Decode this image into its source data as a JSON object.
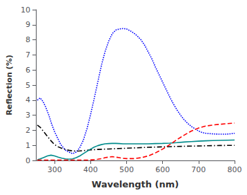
{
  "chart_data": {
    "type": "line",
    "xlabel": "Wavelength (nm)",
    "ylabel": "Reflection (%)",
    "xlim": [
      248,
      800
    ],
    "ylim": [
      0,
      10
    ],
    "xticks": [
      300,
      400,
      500,
      600,
      700,
      800
    ],
    "yticks": [
      0,
      1,
      2,
      3,
      4,
      5,
      6,
      7,
      8,
      9,
      10
    ],
    "grid": false,
    "series": [
      {
        "color": "#0000FF",
        "line_style": "dotted",
        "x": [
          252,
          260,
          268,
          276,
          284,
          292,
          300,
          308,
          316,
          324,
          332,
          340,
          350,
          360,
          370,
          380,
          390,
          400,
          410,
          420,
          430,
          440,
          450,
          460,
          470,
          480,
          490,
          500,
          510,
          520,
          530,
          540,
          550,
          560,
          570,
          580,
          590,
          600,
          610,
          620,
          630,
          640,
          650,
          660,
          670,
          680,
          690,
          700,
          710,
          720,
          730,
          740,
          750,
          760,
          770,
          780,
          790,
          800
        ],
        "values": [
          4.0,
          4.15,
          3.9,
          3.5,
          3.0,
          2.4,
          1.9,
          1.5,
          1.1,
          0.85,
          0.65,
          0.55,
          0.45,
          0.55,
          0.85,
          1.35,
          2.1,
          3.05,
          4.1,
          5.2,
          6.3,
          7.2,
          7.9,
          8.4,
          8.65,
          8.72,
          8.75,
          8.72,
          8.6,
          8.45,
          8.25,
          8.0,
          7.65,
          7.2,
          6.75,
          6.2,
          5.7,
          5.2,
          4.7,
          4.2,
          3.75,
          3.35,
          3.0,
          2.7,
          2.45,
          2.25,
          2.1,
          1.95,
          1.85,
          1.8,
          1.78,
          1.76,
          1.75,
          1.74,
          1.74,
          1.75,
          1.77,
          1.8
        ]
      },
      {
        "color": "#000000",
        "line_style": "dashdot",
        "x": [
          252,
          260,
          270,
          280,
          290,
          300,
          310,
          320,
          330,
          340,
          350,
          360,
          370,
          380,
          390,
          400,
          420,
          450,
          480,
          500,
          530,
          560,
          600,
          640,
          680,
          720,
          760,
          800
        ],
        "values": [
          2.35,
          2.2,
          1.9,
          1.6,
          1.3,
          1.05,
          0.9,
          0.8,
          0.72,
          0.67,
          0.63,
          0.62,
          0.63,
          0.65,
          0.67,
          0.7,
          0.73,
          0.76,
          0.79,
          0.81,
          0.84,
          0.87,
          0.9,
          0.93,
          0.95,
          0.97,
          0.99,
          1.0
        ]
      },
      {
        "color": "#008B8B",
        "line_style": "solid",
        "x": [
          252,
          260,
          270,
          280,
          290,
          300,
          310,
          320,
          330,
          340,
          350,
          360,
          370,
          380,
          390,
          400,
          410,
          420,
          430,
          440,
          450,
          460,
          470,
          480,
          490,
          500,
          520,
          540,
          560,
          580,
          600,
          620,
          640,
          660,
          680,
          700,
          720,
          740,
          760,
          780,
          800
        ],
        "values": [
          0.05,
          0.1,
          0.2,
          0.3,
          0.35,
          0.3,
          0.22,
          0.15,
          0.1,
          0.08,
          0.1,
          0.18,
          0.3,
          0.45,
          0.6,
          0.75,
          0.88,
          0.98,
          1.05,
          1.1,
          1.12,
          1.13,
          1.13,
          1.12,
          1.1,
          1.1,
          1.1,
          1.1,
          1.1,
          1.12,
          1.13,
          1.15,
          1.18,
          1.22,
          1.25,
          1.28,
          1.3,
          1.32,
          1.33,
          1.34,
          1.35
        ]
      },
      {
        "color": "#FF0000",
        "line_style": "dashed",
        "x": [
          252,
          260,
          270,
          280,
          290,
          300,
          310,
          320,
          330,
          340,
          350,
          360,
          370,
          380,
          390,
          400,
          410,
          420,
          430,
          440,
          450,
          460,
          470,
          480,
          490,
          500,
          520,
          540,
          560,
          580,
          600,
          620,
          640,
          660,
          680,
          700,
          720,
          740,
          760,
          780,
          800
        ],
        "values": [
          0.02,
          0.02,
          0.02,
          0.02,
          0.02,
          0.02,
          0.02,
          0.02,
          0.02,
          0.02,
          0.02,
          0.02,
          0.02,
          0.02,
          0.02,
          0.03,
          0.05,
          0.08,
          0.12,
          0.18,
          0.22,
          0.25,
          0.22,
          0.18,
          0.14,
          0.12,
          0.12,
          0.18,
          0.3,
          0.5,
          0.75,
          1.05,
          1.38,
          1.68,
          1.95,
          2.15,
          2.28,
          2.35,
          2.4,
          2.44,
          2.48
        ]
      }
    ]
  }
}
